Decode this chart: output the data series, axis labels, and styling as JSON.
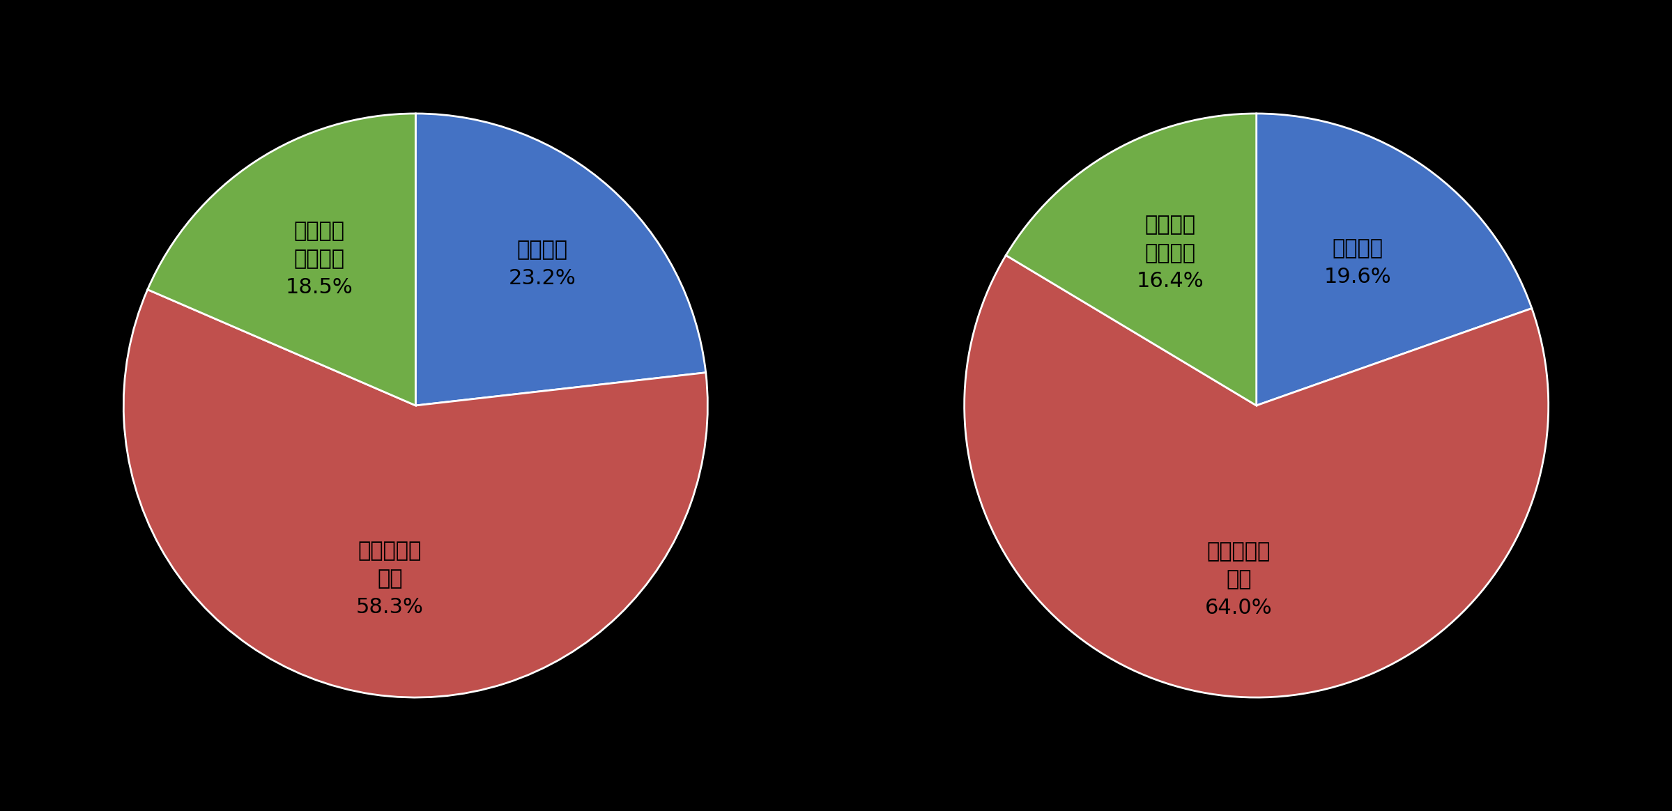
{
  "background_color": "#000000",
  "chart1": {
    "values": [
      23.2,
      58.3,
      18.5
    ],
    "colors": [
      "#4472C4",
      "#C0504D",
      "#70AD47"
    ],
    "label_lines": [
      [
        "民間企業",
        "23.2%"
      ],
      [
        "大学・研究",
        "機関",
        "58.3%"
      ],
      [
        "国立研究",
        "開発法人",
        "18.5%"
      ]
    ],
    "label_radii": [
      0.65,
      0.6,
      0.6
    ],
    "startangle": 90
  },
  "chart2": {
    "values": [
      19.6,
      64.0,
      16.4
    ],
    "colors": [
      "#4472C4",
      "#C0504D",
      "#70AD47"
    ],
    "label_lines": [
      [
        "民間企業",
        "19.6%"
      ],
      [
        "大学・研究",
        "機関",
        "64.0%"
      ],
      [
        "国立研究",
        "開発法人",
        "16.4%"
      ]
    ],
    "label_radii": [
      0.6,
      0.6,
      0.6
    ],
    "startangle": 90
  },
  "label_fontsize": 22,
  "wedge_edge_color": "#ffffff",
  "wedge_linewidth": 2.0
}
